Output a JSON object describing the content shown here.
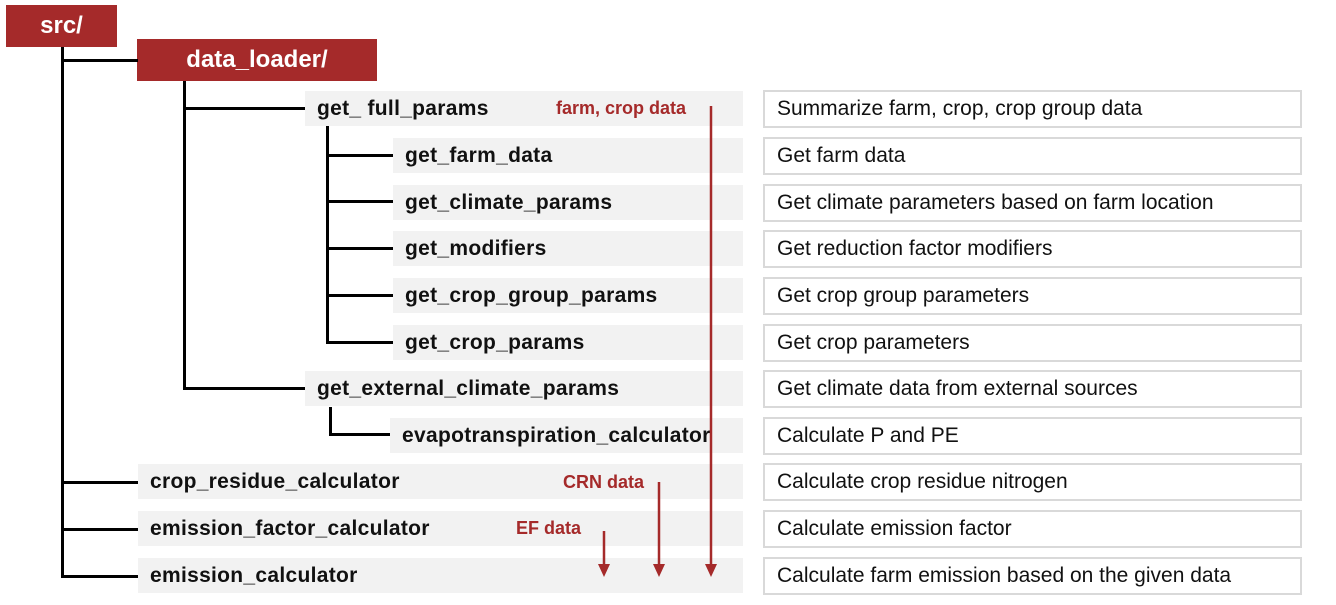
{
  "root": "src/",
  "package": "data_loader/",
  "functions": {
    "get_full_params": "get_ full_params",
    "get_farm_data": "get_farm_data",
    "get_climate_params": "get_climate_params",
    "get_modifiers": "get_modifiers",
    "get_crop_group_params": "get_crop_group_params",
    "get_crop_params": "get_crop_params",
    "get_external_climate_params": "get_external_climate_params",
    "evapotranspiration_calculator": "evapotranspiration_calculator",
    "crop_residue_calculator": "crop_residue_calculator",
    "emission_factor_calculator": "emission_factor_calculator",
    "emission_calculator": "emission_calculator"
  },
  "descriptions": {
    "get_full_params": "Summarize farm, crop, crop group data",
    "get_farm_data": "Get farm data",
    "get_climate_params": "Get climate parameters based on farm location",
    "get_modifiers": "Get reduction factor modifiers",
    "get_crop_group_params": "Get crop group parameters",
    "get_crop_params": "Get crop parameters",
    "get_external_climate_params": "Get climate data from external sources",
    "evapotranspiration_calculator": "Calculate P and PE",
    "crop_residue_calculator": "Calculate crop residue nitrogen",
    "emission_factor_calculator": "Calculate emission factor",
    "emission_calculator": "Calculate farm emission based on the given data"
  },
  "flows": {
    "farm_crop": "farm, crop data",
    "crn": "CRN data",
    "ef": "EF data"
  },
  "colors": {
    "accent": "#a52a2a",
    "row_bg": "#f2f2f2",
    "desc_border": "#d9d9d9",
    "tree_line": "#000000"
  }
}
